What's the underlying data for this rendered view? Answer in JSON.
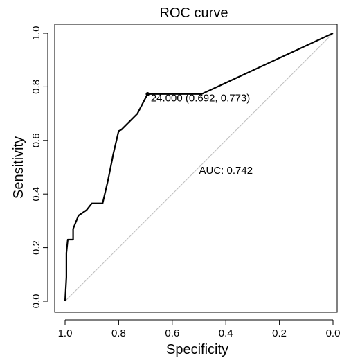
{
  "chart_data": {
    "type": "line",
    "title": "ROC curve",
    "xlabel": "Specificity",
    "ylabel": "Sensitivity",
    "x_reversed": true,
    "xlim": [
      1.0,
      0.0
    ],
    "ylim": [
      0.0,
      1.0
    ],
    "x_ticks": [
      "1.0",
      "0.8",
      "0.6",
      "0.4",
      "0.2",
      "0.0"
    ],
    "x_tick_values": [
      1.0,
      0.8,
      0.6,
      0.4,
      0.2,
      0.0
    ],
    "y_ticks": [
      "0.0",
      "0.2",
      "0.4",
      "0.6",
      "0.8",
      "1.0"
    ],
    "y_tick_values": [
      0.0,
      0.2,
      0.4,
      0.6,
      0.8,
      1.0
    ],
    "grid": false,
    "series": [
      {
        "name": "",
        "specificity": [
          1.0,
          0.995,
          0.995,
          0.99,
          0.97,
          0.97,
          0.95,
          0.92,
          0.9,
          0.87,
          0.86,
          0.84,
          0.82,
          0.8,
          0.79,
          0.73,
          0.692,
          0.61,
          0.49,
          0.0
        ],
        "sensitivity": [
          0.0,
          0.09,
          0.18,
          0.23,
          0.23,
          0.27,
          0.32,
          0.34,
          0.365,
          0.365,
          0.365,
          0.45,
          0.55,
          0.635,
          0.64,
          0.7,
          0.773,
          0.773,
          0.773,
          1.0
        ],
        "color": "#000000"
      }
    ],
    "reference_line": {
      "from": [
        1.0,
        0.0
      ],
      "to": [
        0.0,
        1.0
      ],
      "color": "#bfbfbf"
    },
    "threshold_point": {
      "specificity": 0.692,
      "sensitivity": 0.773
    },
    "annotations": [
      {
        "text": "24.000 (0.692, 0.773)",
        "x": 0.68,
        "y": 0.745
      },
      {
        "text": "AUC: 0.742",
        "x": 0.5,
        "y": 0.475
      }
    ]
  }
}
